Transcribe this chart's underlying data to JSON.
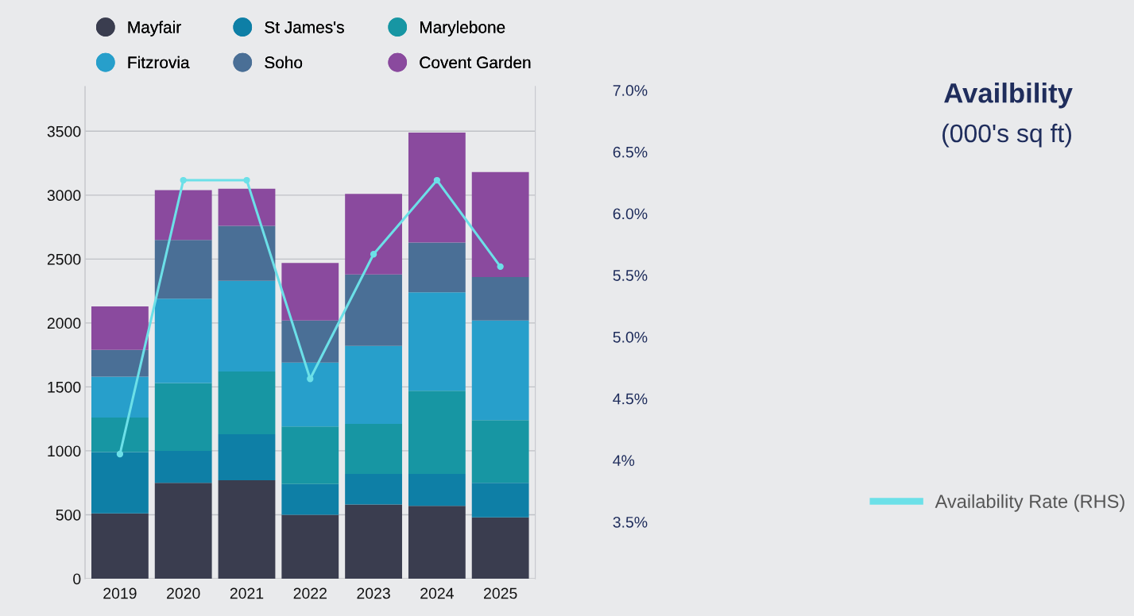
{
  "chart_data": {
    "type": "bar",
    "title": "Availbility",
    "subtitle": "(000's sq ft)",
    "stacked": true,
    "legend": "top",
    "grid": "y",
    "categories": [
      "2019",
      "2020",
      "2021",
      "2022",
      "2023",
      "2024",
      "2025"
    ],
    "ylim": [
      0,
      3850
    ],
    "yticks": [
      0,
      500,
      1000,
      1500,
      2000,
      2500,
      3000,
      3500
    ],
    "y2lim": [
      3.04,
      7.03
    ],
    "y2ticks": [
      {
        "value": 3.5,
        "label": "3.5%"
      },
      {
        "value": 4,
        "label": "4%"
      },
      {
        "value": 4.5,
        "label": "4.5%"
      },
      {
        "value": 5,
        "label": "5.0%"
      },
      {
        "value": 5.5,
        "label": "5.5%"
      },
      {
        "value": 6,
        "label": "6.0%"
      },
      {
        "value": 6.5,
        "label": "6.5%"
      },
      {
        "value": 7,
        "label": "7.0%"
      }
    ],
    "series": [
      {
        "name": "Mayfair",
        "color": "#3a3d4f",
        "values": [
          510,
          750,
          770,
          500,
          580,
          570,
          480
        ]
      },
      {
        "name": "St James's",
        "color": "#0e7fa6",
        "values": [
          480,
          250,
          360,
          240,
          240,
          250,
          270
        ]
      },
      {
        "name": "Marylebone",
        "color": "#1796a3",
        "values": [
          270,
          530,
          490,
          450,
          390,
          650,
          490
        ]
      },
      {
        "name": "Fitzrovia",
        "color": "#279fcb",
        "values": [
          320,
          660,
          710,
          500,
          610,
          770,
          780
        ]
      },
      {
        "name": "Soho",
        "color": "#4a6f96",
        "values": [
          210,
          460,
          430,
          330,
          560,
          390,
          340
        ]
      },
      {
        "name": "Covent Garden",
        "color": "#8a4a9e",
        "values": [
          340,
          390,
          290,
          450,
          630,
          860,
          820
        ]
      },
      {
        "name": "Availability Rate (RHS)",
        "type": "line",
        "axis": "y2",
        "color": "#6ce0e8",
        "marker": "circle",
        "values": [
          4.05,
          6.27,
          6.27,
          4.66,
          5.67,
          6.27,
          5.57
        ]
      }
    ]
  }
}
